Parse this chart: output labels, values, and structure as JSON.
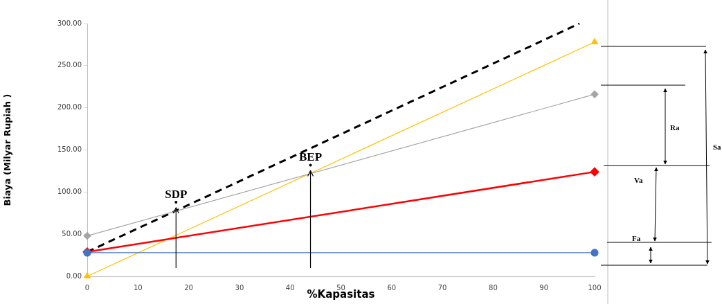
{
  "chart_data": {
    "type": "line",
    "xlabel": "%Kapasitas",
    "ylabel": "Biaya (Milyar Rupiah )",
    "xlim": [
      0,
      100
    ],
    "xticks": [
      0,
      10,
      20,
      30,
      40,
      50,
      60,
      70,
      80,
      90,
      100
    ],
    "ylim": [
      0,
      300
    ],
    "yticks": [
      {
        "value": 0,
        "label": "0.00"
      },
      {
        "value": 50,
        "label": "50.00"
      },
      {
        "value": 100,
        "label": "100.00"
      },
      {
        "value": 150,
        "label": "150.00"
      },
      {
        "value": 200,
        "label": "200.00"
      },
      {
        "value": 250,
        "label": "250.00"
      },
      {
        "value": 300,
        "label": "300.00"
      }
    ],
    "grid": false,
    "legend": false,
    "series": [
      {
        "color": "#4472c4",
        "x": [
          0,
          100
        ],
        "values": [
          28,
          28
        ],
        "marker": "circle"
      },
      {
        "color": "#ff0000",
        "x": [
          0,
          100
        ],
        "values": [
          29,
          124
        ],
        "marker": "diamond"
      },
      {
        "color": "#a5a5a5",
        "x": [
          0,
          100
        ],
        "values": [
          48,
          216
        ],
        "marker": "diamond"
      },
      {
        "color": "#ffc000",
        "x": [
          0,
          100
        ],
        "values": [
          0,
          278
        ],
        "marker": "triangle"
      },
      {
        "color": "#000000",
        "x": [
          0,
          97
        ],
        "values": [
          29,
          300
        ],
        "marker": "none",
        "line_style": "dashed"
      }
    ],
    "annotations": [
      {
        "text": "SDP",
        "x": 17.5,
        "y": 78
      },
      {
        "text": "BEP",
        "x": 44,
        "y": 122
      },
      "Ra",
      "Va",
      "Fa",
      "Sa"
    ]
  }
}
